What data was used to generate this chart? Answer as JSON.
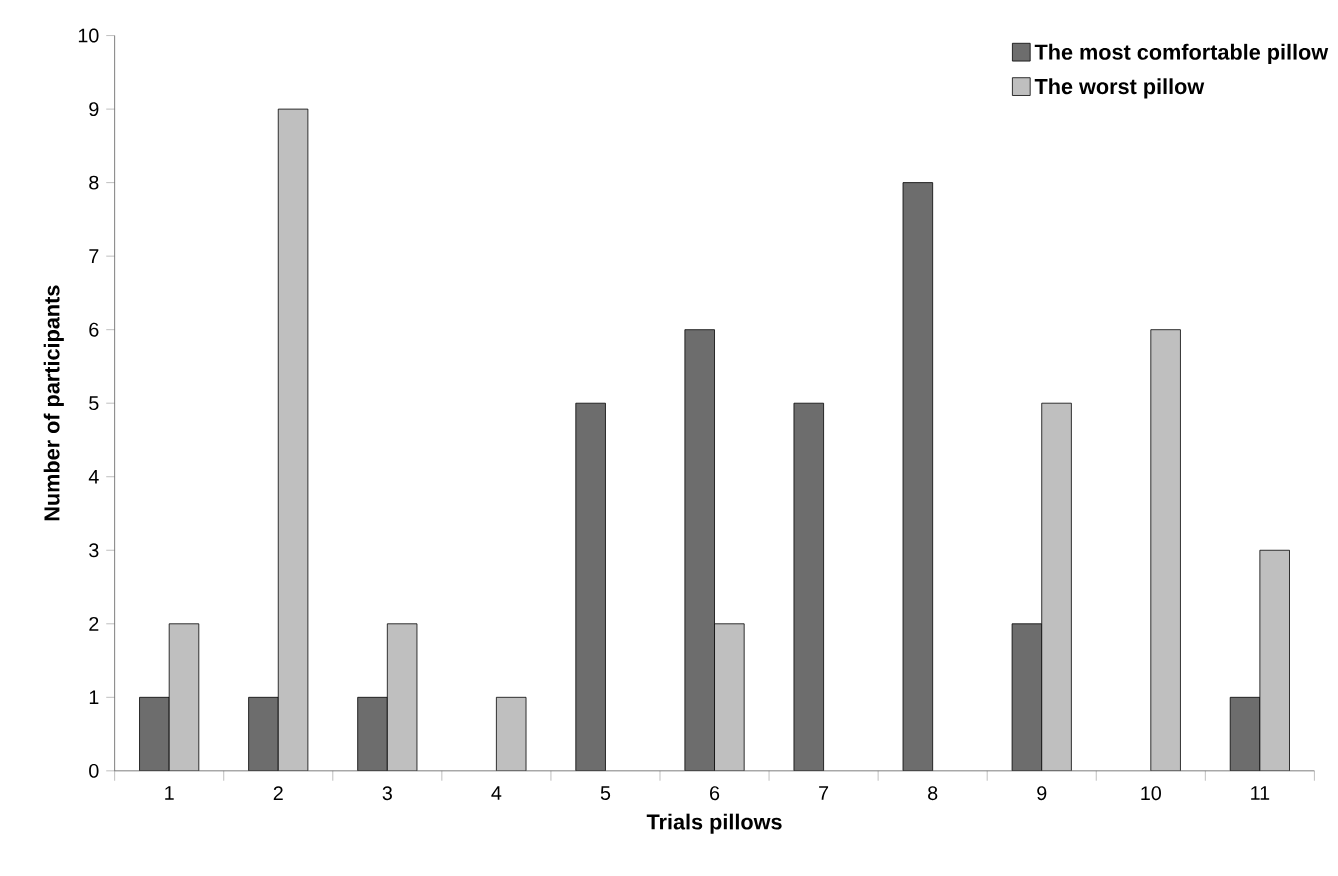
{
  "chart_data": {
    "type": "bar",
    "xlabel": "Trials pillows",
    "ylabel": "Number of participants",
    "categories": [
      "1",
      "2",
      "3",
      "4",
      "5",
      "6",
      "7",
      "8",
      "9",
      "10",
      "11"
    ],
    "series": [
      {
        "name": "The most comfortable pillow",
        "color": "#6d6d6d",
        "values": [
          1,
          1,
          1,
          null,
          5,
          6,
          5,
          8,
          2,
          null,
          1
        ]
      },
      {
        "name": "The worst pillow",
        "color": "#bfbfbf",
        "values": [
          2,
          9,
          2,
          1,
          null,
          2,
          null,
          null,
          5,
          6,
          3
        ]
      }
    ],
    "ylim": [
      0,
      10
    ],
    "yticks": [
      0,
      1,
      2,
      3,
      4,
      5,
      6,
      7,
      8,
      9,
      10
    ],
    "legend": "top right"
  }
}
